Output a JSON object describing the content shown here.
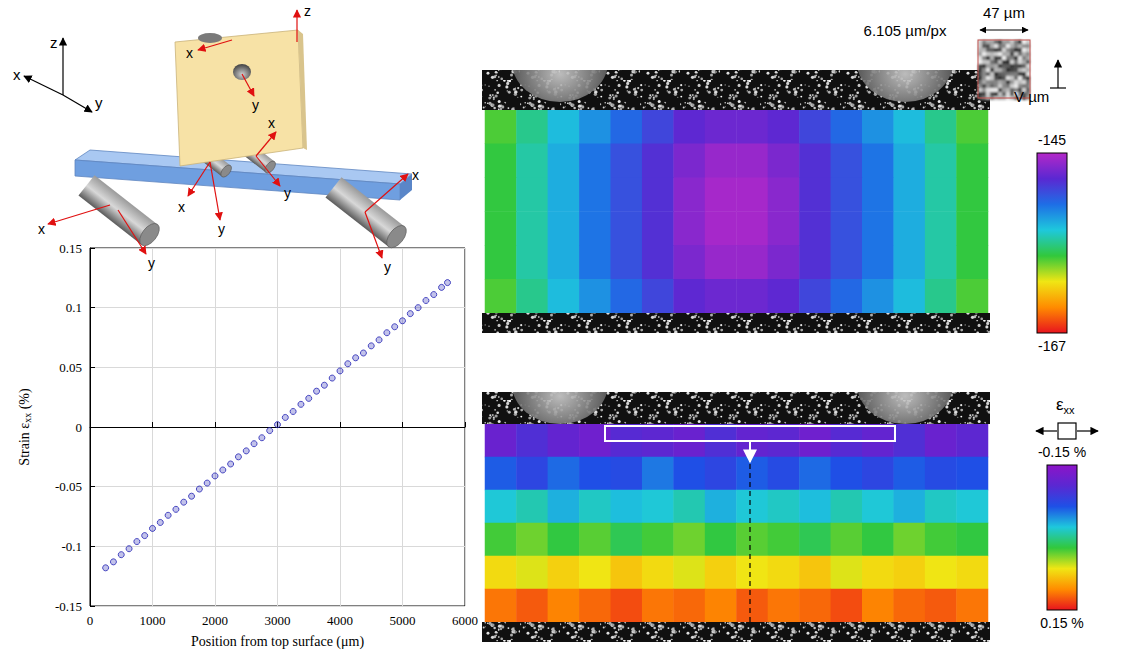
{
  "chart_data": {
    "type": "scatter",
    "xlabel": "Position from top surface (μm)",
    "ylabel": {
      "text": "Strain ε",
      "subscript": "xx",
      "suffix": " (%)"
    },
    "x": [
      250,
      375,
      500,
      625,
      750,
      875,
      1000,
      1125,
      1250,
      1375,
      1500,
      1625,
      1750,
      1875,
      2000,
      2125,
      2250,
      2375,
      2500,
      2625,
      2750,
      2875,
      3000,
      3125,
      3250,
      3375,
      3500,
      3625,
      3750,
      3875,
      4000,
      4125,
      4250,
      4375,
      4500,
      4625,
      4750,
      4875,
      5000,
      5125,
      5250,
      5375,
      5500,
      5625,
      5720
    ],
    "values": [
      -0.118,
      -0.113,
      -0.107,
      -0.102,
      -0.096,
      -0.091,
      -0.085,
      -0.08,
      -0.074,
      -0.069,
      -0.063,
      -0.058,
      -0.052,
      -0.047,
      -0.041,
      -0.036,
      -0.031,
      -0.025,
      -0.02,
      -0.014,
      -0.009,
      -0.003,
      0.002,
      0.008,
      0.013,
      0.019,
      0.024,
      0.03,
      0.035,
      0.041,
      0.047,
      0.053,
      0.058,
      0.062,
      0.068,
      0.073,
      0.079,
      0.084,
      0.089,
      0.095,
      0.1,
      0.106,
      0.111,
      0.117,
      0.121
    ],
    "xlim": [
      0,
      6000
    ],
    "xticks": [
      0,
      1000,
      2000,
      3000,
      4000,
      5000,
      6000
    ],
    "ylim": [
      -0.15,
      0.15
    ],
    "yticks": [
      -0.15,
      -0.1,
      -0.05,
      0,
      0.05,
      0.1,
      0.15
    ],
    "grid": true,
    "color": "#2323b4",
    "marker": "circle"
  },
  "fields": [
    {
      "type": "heatmap",
      "values": [
        [
          -158,
          -156,
          -154,
          -152.5,
          -151,
          -149.5,
          -148,
          -147.5,
          -147.5,
          -148,
          -149.5,
          -151,
          -152.5,
          -154,
          -156,
          -158
        ],
        [
          -157.5,
          -155.5,
          -153.5,
          -151.5,
          -150,
          -148.5,
          -147,
          -146,
          -146,
          -147,
          -148.5,
          -150,
          -151.5,
          -153.5,
          -155.5,
          -157.5
        ],
        [
          -157.5,
          -155.5,
          -153.5,
          -151.5,
          -150,
          -148.5,
          -146.5,
          -145.5,
          -145.5,
          -146.5,
          -148.5,
          -150,
          -151.5,
          -153.5,
          -155.5,
          -157.5
        ],
        [
          -157.5,
          -155.5,
          -153.5,
          -151.5,
          -150,
          -148.5,
          -146.5,
          -145.5,
          -145.5,
          -146.5,
          -148.5,
          -150,
          -151.5,
          -153.5,
          -155.5,
          -157.5
        ],
        [
          -157.5,
          -155.5,
          -153.5,
          -151.5,
          -150,
          -148.5,
          -147,
          -146,
          -146,
          -147,
          -148.5,
          -150,
          -151.5,
          -153.5,
          -155.5,
          -157.5
        ],
        [
          -158,
          -156,
          -154,
          -152.5,
          -151,
          -149.5,
          -148,
          -147.5,
          -147.5,
          -148,
          -149.5,
          -151,
          -152.5,
          -154,
          -156,
          -158
        ]
      ],
      "colorbar": {
        "title": "V µm",
        "range": [
          -167,
          -145
        ],
        "ticks": [
          -145,
          -167
        ]
      }
    },
    {
      "type": "heatmap",
      "values": [
        [
          -0.12,
          -0.1,
          -0.115,
          -0.125,
          -0.105,
          -0.11,
          -0.12,
          -0.1,
          -0.115,
          -0.11,
          -0.125,
          -0.105,
          -0.115,
          -0.1,
          -0.12,
          -0.11
        ],
        [
          -0.06,
          -0.075,
          -0.055,
          -0.065,
          -0.07,
          -0.05,
          -0.065,
          -0.075,
          -0.06,
          -0.07,
          -0.055,
          -0.065,
          -0.075,
          -0.06,
          -0.07,
          -0.065
        ],
        [
          -0.02,
          -0.01,
          -0.03,
          -0.015,
          -0.025,
          -0.02,
          -0.01,
          -0.03,
          -0.02,
          -0.015,
          -0.025,
          -0.01,
          -0.02,
          -0.03,
          -0.015,
          -0.02
        ],
        [
          0.025,
          0.035,
          0.02,
          0.03,
          0.015,
          0.025,
          0.035,
          0.02,
          0.03,
          0.025,
          0.015,
          0.03,
          0.02,
          0.035,
          0.025,
          0.02
        ],
        [
          0.07,
          0.06,
          0.075,
          0.065,
          0.08,
          0.07,
          0.06,
          0.075,
          0.065,
          0.07,
          0.08,
          0.06,
          0.07,
          0.075,
          0.065,
          0.07
        ],
        [
          0.115,
          0.125,
          0.11,
          0.12,
          0.13,
          0.115,
          0.12,
          0.11,
          0.125,
          0.115,
          0.12,
          0.13,
          0.11,
          0.12,
          0.125,
          0.115
        ]
      ],
      "colorbar": {
        "title": "ε",
        "title_subscript": "xx",
        "range": [
          -0.15,
          0.15
        ],
        "ticks": [
          {
            "value": -0.15,
            "label": "-0.15 %"
          },
          {
            "value": 0.15,
            "label": "0.15 %"
          }
        ]
      }
    }
  ],
  "annotations": {
    "pixel_size": "6.105 µm/px",
    "subset_size": "47 µm"
  },
  "schematic": {
    "axis_labels": [
      "z",
      "x",
      "y"
    ],
    "frame_labels": [
      "z",
      "x",
      "y",
      "x",
      "y",
      "x",
      "y",
      "x",
      "y",
      "x",
      "y"
    ]
  }
}
